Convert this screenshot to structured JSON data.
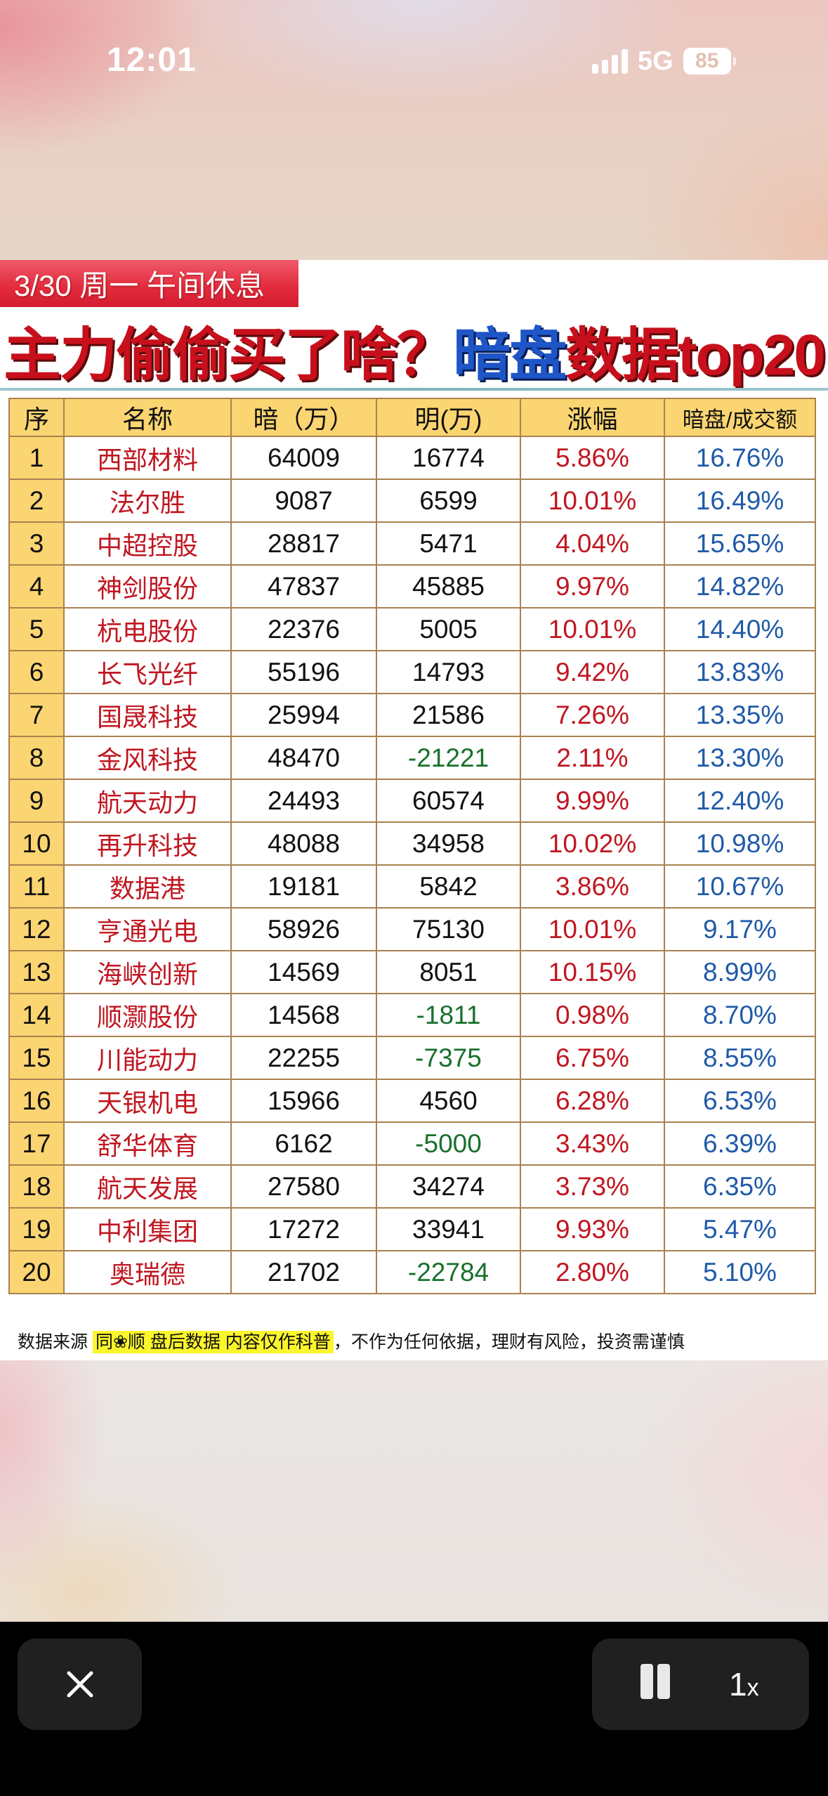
{
  "status_bar": {
    "time": "12:01",
    "network": "5G",
    "battery": "85",
    "signal_bars": 4
  },
  "banner": {
    "date_label": "3/30 周一  午间休息"
  },
  "headline": {
    "part1": "主力偷偷买了啥？",
    "part2": "暗盘",
    "part3": "数据top20"
  },
  "colors": {
    "banner_red": "#e22a3c",
    "headline_red": "#c8101c",
    "headline_blue": "#1e56c8",
    "header_yellow": "#fbd571",
    "name_red": "#c01620",
    "negative_green": "#18702c",
    "ratio_blue": "#1f5aa8",
    "highlight_yellow": "#fbf52c"
  },
  "table": {
    "headers": [
      "序",
      "名称",
      "暗（万）",
      "明(万)",
      "涨幅",
      "暗盘/成交额"
    ],
    "rows": [
      {
        "idx": "1",
        "name": "西部材料",
        "dark": "64009",
        "lit": "16774",
        "lit_negative": false,
        "change": "5.86%",
        "ratio": "16.76%"
      },
      {
        "idx": "2",
        "name": "法尔胜",
        "dark": "9087",
        "lit": "6599",
        "lit_negative": false,
        "change": "10.01%",
        "ratio": "16.49%"
      },
      {
        "idx": "3",
        "name": "中超控股",
        "dark": "28817",
        "lit": "5471",
        "lit_negative": false,
        "change": "4.04%",
        "ratio": "15.65%"
      },
      {
        "idx": "4",
        "name": "神剑股份",
        "dark": "47837",
        "lit": "45885",
        "lit_negative": false,
        "change": "9.97%",
        "ratio": "14.82%"
      },
      {
        "idx": "5",
        "name": "杭电股份",
        "dark": "22376",
        "lit": "5005",
        "lit_negative": false,
        "change": "10.01%",
        "ratio": "14.40%"
      },
      {
        "idx": "6",
        "name": "长飞光纤",
        "dark": "55196",
        "lit": "14793",
        "lit_negative": false,
        "change": "9.42%",
        "ratio": "13.83%"
      },
      {
        "idx": "7",
        "name": "国晟科技",
        "dark": "25994",
        "lit": "21586",
        "lit_negative": false,
        "change": "7.26%",
        "ratio": "13.35%"
      },
      {
        "idx": "8",
        "name": "金风科技",
        "dark": "48470",
        "lit": "-21221",
        "lit_negative": true,
        "change": "2.11%",
        "ratio": "13.30%"
      },
      {
        "idx": "9",
        "name": "航天动力",
        "dark": "24493",
        "lit": "60574",
        "lit_negative": false,
        "change": "9.99%",
        "ratio": "12.40%"
      },
      {
        "idx": "10",
        "name": "再升科技",
        "dark": "48088",
        "lit": "34958",
        "lit_negative": false,
        "change": "10.02%",
        "ratio": "10.98%"
      },
      {
        "idx": "11",
        "name": "数据港",
        "dark": "19181",
        "lit": "5842",
        "lit_negative": false,
        "change": "3.86%",
        "ratio": "10.67%"
      },
      {
        "idx": "12",
        "name": "亨通光电",
        "dark": "58926",
        "lit": "75130",
        "lit_negative": false,
        "change": "10.01%",
        "ratio": "9.17%"
      },
      {
        "idx": "13",
        "name": "海峡创新",
        "dark": "14569",
        "lit": "8051",
        "lit_negative": false,
        "change": "10.15%",
        "ratio": "8.99%"
      },
      {
        "idx": "14",
        "name": "顺灏股份",
        "dark": "14568",
        "lit": "-1811",
        "lit_negative": true,
        "change": "0.98%",
        "ratio": "8.70%"
      },
      {
        "idx": "15",
        "name": "川能动力",
        "dark": "22255",
        "lit": "-7375",
        "lit_negative": true,
        "change": "6.75%",
        "ratio": "8.55%"
      },
      {
        "idx": "16",
        "name": "天银机电",
        "dark": "15966",
        "lit": "4560",
        "lit_negative": false,
        "change": "6.28%",
        "ratio": "6.53%"
      },
      {
        "idx": "17",
        "name": "舒华体育",
        "dark": "6162",
        "lit": "-5000",
        "lit_negative": true,
        "change": "3.43%",
        "ratio": "6.39%"
      },
      {
        "idx": "18",
        "name": "航天发展",
        "dark": "27580",
        "lit": "34274",
        "lit_negative": false,
        "change": "3.73%",
        "ratio": "6.35%"
      },
      {
        "idx": "19",
        "name": "中利集团",
        "dark": "17272",
        "lit": "33941",
        "lit_negative": false,
        "change": "9.93%",
        "ratio": "5.47%"
      },
      {
        "idx": "20",
        "name": "奥瑞德",
        "dark": "21702",
        "lit": "-22784",
        "lit_negative": true,
        "change": "2.80%",
        "ratio": "5.10%"
      }
    ]
  },
  "footnote": {
    "prefix": "数据来源",
    "highlight": "同❀顺  盘后数据  内容仅作科普",
    "suffix": "，不作为任何依据，理财有风险，投资需谨慎"
  },
  "player_controls": {
    "close_icon": "close-icon",
    "pause_icon": "pause-icon",
    "speed_value": "1",
    "speed_suffix": "x"
  }
}
